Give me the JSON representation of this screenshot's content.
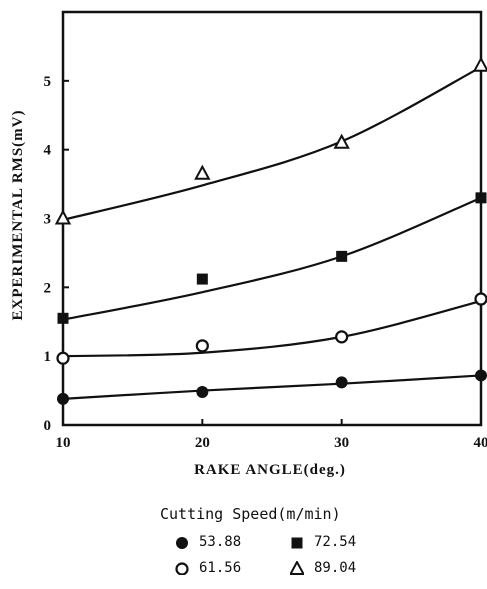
{
  "chart_data": {
    "type": "scatter",
    "xlabel": "RAKE ANGLE(deg.)",
    "ylabel": "EXPERIMENTAL RMS(mV)",
    "xlim": [
      10,
      40
    ],
    "ylim": [
      0,
      6
    ],
    "xticks": [
      "10",
      "20",
      "30",
      "40"
    ],
    "yticks": [
      "0",
      "1",
      "2",
      "3",
      "4",
      "5"
    ],
    "grid": false,
    "legend_title": "Cutting Speed(m/min)",
    "legend_placement": "bottom",
    "series": [
      {
        "name": "53.88",
        "marker": "filled-circle",
        "x": [
          10,
          20,
          30,
          40
        ],
        "values": [
          0.38,
          0.48,
          0.62,
          0.72
        ],
        "fit": [
          0.38,
          0.5,
          0.6,
          0.72
        ]
      },
      {
        "name": "61.56",
        "marker": "open-circle",
        "x": [
          10,
          20,
          30,
          40
        ],
        "values": [
          0.97,
          1.15,
          1.28,
          1.83
        ],
        "fit": [
          1.0,
          1.05,
          1.28,
          1.8
        ]
      },
      {
        "name": "72.54",
        "marker": "filled-square",
        "x": [
          10,
          20,
          30,
          40
        ],
        "values": [
          1.55,
          2.12,
          2.45,
          3.3
        ],
        "fit": [
          1.53,
          1.93,
          2.45,
          3.3
        ]
      },
      {
        "name": "89.04",
        "marker": "open-triangle",
        "x": [
          10,
          20,
          30,
          40
        ],
        "values": [
          3.0,
          3.65,
          4.1,
          5.22
        ],
        "fit": [
          2.98,
          3.48,
          4.12,
          5.2
        ]
      }
    ]
  }
}
